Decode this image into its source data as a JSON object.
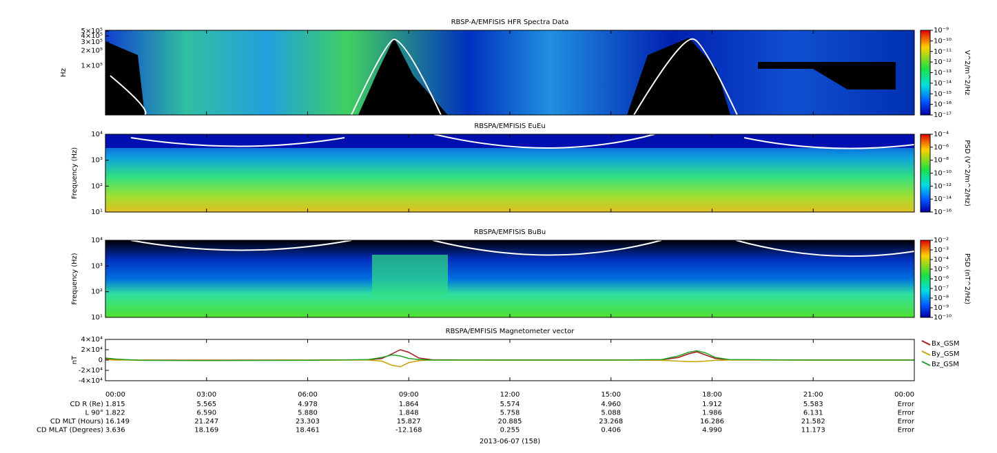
{
  "chart_data": [
    {
      "type": "heatmap",
      "title": "RBSP-A/EMFISIS  HFR Spectra Data",
      "ylabel": "Hz",
      "ylog": true,
      "ylim": [
        10000,
        520000
      ],
      "yticks": [
        {
          "value": 500000,
          "label": "5×10⁵"
        },
        {
          "value": 400000,
          "label": "4×10⁵"
        },
        {
          "value": 300000,
          "label": "3×10⁵"
        },
        {
          "value": 200000,
          "label": "2×10⁵"
        },
        {
          "value": 100000,
          "label": "1×10⁵"
        }
      ],
      "colorbar": {
        "label": "V^2/m^2/Hz",
        "zlim": [
          1e-17,
          1e-09
        ],
        "zticks": [
          {
            "value": 1e-09,
            "label": "10⁻⁹"
          },
          {
            "value": 1e-10,
            "label": "10⁻¹⁰"
          },
          {
            "value": 1e-11,
            "label": "10⁻¹¹"
          },
          {
            "value": 1e-12,
            "label": "10⁻¹²"
          },
          {
            "value": 1e-13,
            "label": "10⁻¹³"
          },
          {
            "value": 1e-14,
            "label": "10⁻¹⁴"
          },
          {
            "value": 1e-15,
            "label": "10⁻¹⁵"
          },
          {
            "value": 1e-16,
            "label": "10⁻¹⁶"
          },
          {
            "value": 1e-17,
            "label": "10⁻¹⁷"
          }
        ]
      }
    },
    {
      "type": "heatmap",
      "title": "RBSPA/EMFISIS  EuEu",
      "ylabel": "Frequency (Hz)",
      "ylog": true,
      "ylim": [
        10,
        10000
      ],
      "yticks": [
        {
          "value": 10000,
          "label": "10⁴"
        },
        {
          "value": 1000,
          "label": "10³"
        },
        {
          "value": 100,
          "label": "10²"
        },
        {
          "value": 10,
          "label": "10¹"
        }
      ],
      "colorbar": {
        "label": "PSD (V^2/m^2/Hz)",
        "zlim": [
          1e-16,
          0.0001
        ],
        "zticks": [
          {
            "value": 0.0001,
            "label": "10⁻⁴"
          },
          {
            "value": 1e-06,
            "label": "10⁻⁶"
          },
          {
            "value": 1e-08,
            "label": "10⁻⁸"
          },
          {
            "value": 1e-10,
            "label": "10⁻¹⁰"
          },
          {
            "value": 1e-12,
            "label": "10⁻¹²"
          },
          {
            "value": 1e-14,
            "label": "10⁻¹⁴"
          },
          {
            "value": 1e-16,
            "label": "10⁻¹⁶"
          }
        ]
      }
    },
    {
      "type": "heatmap",
      "title": "RBSPA/EMFISIS  BuBu",
      "ylabel": "Frequency (Hz)",
      "ylog": true,
      "ylim": [
        10,
        10000
      ],
      "yticks": [
        {
          "value": 10000,
          "label": "10⁴"
        },
        {
          "value": 1000,
          "label": "10³"
        },
        {
          "value": 100,
          "label": "10²"
        },
        {
          "value": 10,
          "label": "10¹"
        }
      ],
      "colorbar": {
        "label": "PSD (nT^2/Hz)",
        "zlim": [
          1e-10,
          0.01
        ],
        "zticks": [
          {
            "value": 0.01,
            "label": "10⁻²"
          },
          {
            "value": 0.001,
            "label": "10⁻³"
          },
          {
            "value": 0.0001,
            "label": "10⁻⁴"
          },
          {
            "value": 1e-05,
            "label": "10⁻⁵"
          },
          {
            "value": 1e-06,
            "label": "10⁻⁶"
          },
          {
            "value": 1e-07,
            "label": "10⁻⁷"
          },
          {
            "value": 1e-08,
            "label": "10⁻⁸"
          },
          {
            "value": 1e-09,
            "label": "10⁻⁹"
          },
          {
            "value": 1e-10,
            "label": "10⁻¹⁰"
          }
        ]
      }
    },
    {
      "type": "line",
      "title": "RBSPA/EMFISIS  Magnetometer vector",
      "ylabel": "nT",
      "legend": "right",
      "ylim": [
        -40000,
        40000
      ],
      "yticks": [
        {
          "value": 40000,
          "label": "4×10⁴"
        },
        {
          "value": 20000,
          "label": "2×10⁴"
        },
        0,
        {
          "value": -20000,
          "label": "-2×10⁴"
        },
        {
          "value": -40000,
          "label": "-4×10⁴"
        }
      ],
      "xlim": [
        0,
        24
      ],
      "xticks": [
        {
          "value": 0,
          "label": "00:00"
        },
        {
          "value": 3,
          "label": "03:00"
        },
        {
          "value": 6,
          "label": "06:00"
        },
        {
          "value": 9,
          "label": "09:00"
        },
        {
          "value": 12,
          "label": "12:00"
        },
        {
          "value": 15,
          "label": "15:00"
        },
        {
          "value": 18,
          "label": "18:00"
        },
        {
          "value": 21,
          "label": "21:00"
        },
        {
          "value": 24,
          "label": "00:00"
        }
      ],
      "x": [
        0,
        0.3,
        1,
        3,
        6,
        7.8,
        8.2,
        8.5,
        8.75,
        9.0,
        9.3,
        9.7,
        12,
        15,
        16.5,
        17.0,
        17.3,
        17.55,
        17.8,
        18.1,
        18.5,
        21,
        24
      ],
      "series": [
        {
          "name": "Bx_GSM",
          "color": "#a01818",
          "values": [
            3000,
            1000,
            0,
            0,
            0,
            500,
            3000,
            12000,
            20000,
            15000,
            4000,
            500,
            0,
            0,
            500,
            5000,
            12000,
            16000,
            10000,
            3000,
            500,
            0,
            0
          ]
        },
        {
          "name": "By_GSM",
          "color": "#c8a000",
          "values": [
            1000,
            0,
            0,
            -500,
            0,
            0,
            -2000,
            -10000,
            -13000,
            -5000,
            -1000,
            0,
            0,
            0,
            -500,
            -2000,
            -3000,
            -3000,
            -2000,
            -500,
            0,
            0,
            0
          ]
        },
        {
          "name": "Bz_GSM",
          "color": "#22a022",
          "values": [
            4000,
            2000,
            -500,
            -1000,
            -500,
            1000,
            5000,
            10000,
            8000,
            3000,
            1000,
            0,
            0,
            0,
            1000,
            8000,
            15000,
            18000,
            14000,
            5000,
            1000,
            0,
            0
          ]
        }
      ]
    }
  ],
  "ephemeris": {
    "rows": [
      {
        "label": "CD R (Re)",
        "values": [
          "1.815",
          "5.565",
          "4.978",
          "1.864",
          "5.574",
          "4.960",
          "1.912",
          "5.583",
          "Error"
        ]
      },
      {
        "label": "L 90°",
        "values": [
          "1.822",
          "6.590",
          "5.880",
          "1.848",
          "5.758",
          "5.088",
          "1.986",
          "6.131",
          "Error"
        ]
      },
      {
        "label": "CD MLT (Hours)",
        "values": [
          "16.149",
          "21.247",
          "23.303",
          "15.827",
          "20.885",
          "23.268",
          "16.286",
          "21.582",
          "Error"
        ]
      },
      {
        "label": "CD MLAT (Degrees)",
        "values": [
          "3.636",
          "18.169",
          "18.461",
          "-12.168",
          "0.255",
          "0.406",
          "4.990",
          "11.173",
          "Error"
        ]
      }
    ],
    "date": "2013-06-07 (158)"
  }
}
